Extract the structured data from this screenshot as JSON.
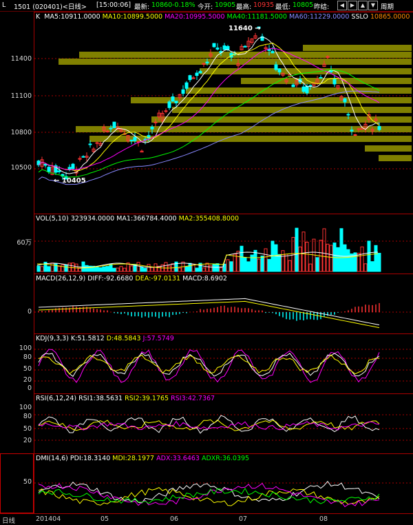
{
  "topbar": {
    "code": "1501 (020401)<日线>",
    "time": "[15:00:06]",
    "latest_label": "最新:",
    "latest_value": "10860",
    "change": "-0.18%",
    "open_label": "今开:",
    "open_value": "10905",
    "high_label": "最高:",
    "high_value": "10935",
    "low_label": "最低:",
    "low_value": "10805",
    "settle_label": "昨结:",
    "period_label": "周期",
    "corner": "L"
  },
  "colors": {
    "up": "#ff3333",
    "down": "#00ffff",
    "ma5": "#ffffff",
    "ma10": "#ffff00",
    "ma20": "#ff00ff",
    "ma40": "#00ff00",
    "ma60": "#8888ff",
    "grid": "#aa0000",
    "volume_profile": "#808000"
  },
  "main_panel": {
    "title": "K",
    "ma5": "MA5:10911.0000",
    "ma10": "MA10:10899.5000",
    "ma20": "MA20:10995.5000",
    "ma40": "MA40:11181.5000",
    "ma60": "MA60:11229.0000",
    "sslo": "SSLO",
    "sslo_value": "10865.0000",
    "high_marker": "11640",
    "low_marker": "10405",
    "y_labels": [
      "11400",
      "11100",
      "10800",
      "10500"
    ]
  },
  "vol_panel": {
    "title": "VOL(5,10)",
    "value": "323934.0000",
    "ma1": "MA1:366784.4000",
    "ma2": "MA2:355408.8000",
    "y_labels": [
      "60万"
    ]
  },
  "macd_panel": {
    "title": "MACD(26,12,9)",
    "diff": "DIFF:-92.6680",
    "dea": "DEA:-97.0131",
    "macd": "MACD:8.6902",
    "y_labels": [
      "0"
    ]
  },
  "kdj_panel": {
    "title": "KDJ(9,3,3)",
    "k": "K:51.5812",
    "d": "D:48.5843",
    "j": "J:57.5749",
    "y_labels": [
      "100",
      "80",
      "50",
      "20",
      "0"
    ]
  },
  "rsi_panel": {
    "title": "RSI(6,12,24)",
    "rsi1": "RSI1:38.5631",
    "rsi2": "RSI2:39.1765",
    "rsi3": "RSI3:42.7367",
    "y_labels": [
      "100",
      "80",
      "50",
      "20"
    ]
  },
  "dmi_panel": {
    "title": "DMI(14,6)",
    "pdi": "PDI:18.3140",
    "mdi": "MDI:28.1977",
    "adx": "ADX:33.6463",
    "adxr": "ADXR:36.0395",
    "y_labels": [
      "50"
    ]
  },
  "x_axis": {
    "period": "日线",
    "labels": [
      "201404",
      "05",
      "06",
      "07",
      "08"
    ]
  }
}
